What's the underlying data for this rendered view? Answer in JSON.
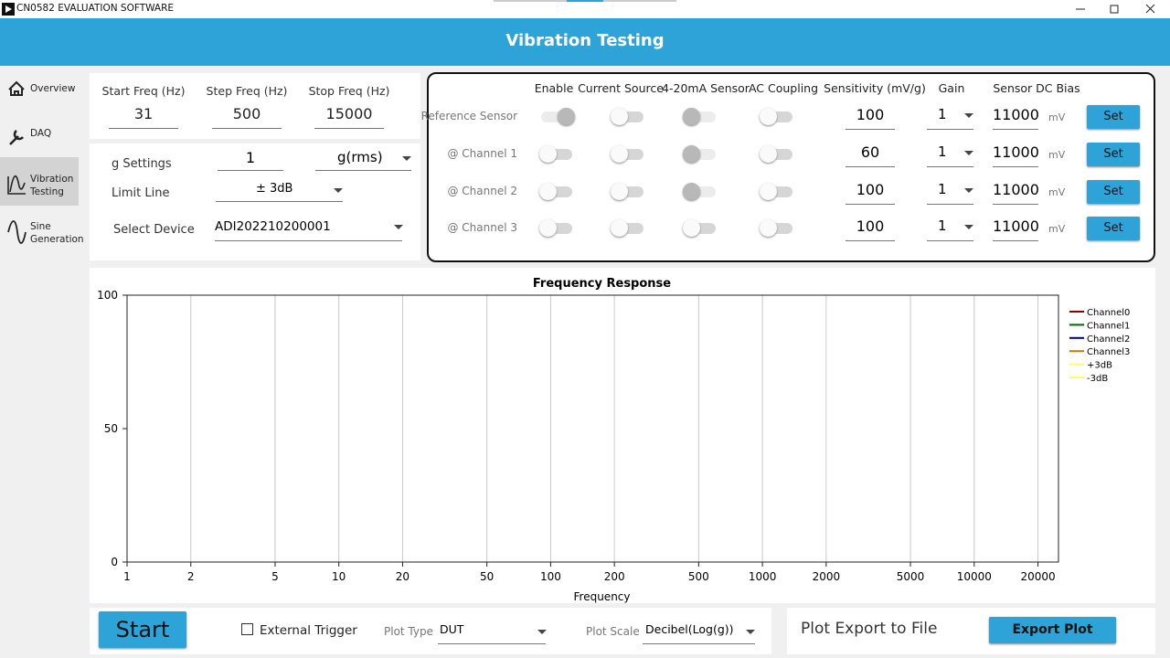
{
  "window": {
    "title": "CN0582 EVALUATION SOFTWARE"
  },
  "header": {
    "title": "Vibration Testing"
  },
  "nav": [
    {
      "label": "Overview",
      "selected": false
    },
    {
      "label": "DAQ",
      "selected": false
    },
    {
      "label": "Vibration Testing",
      "selected": true
    },
    {
      "label": "Sine Generation",
      "selected": false
    }
  ],
  "freq": [
    {
      "label": "Start Freq (Hz)",
      "value": "31"
    },
    {
      "label": "Step Freq (Hz)",
      "value": "500"
    },
    {
      "label": "Stop Freq (Hz)",
      "value": "15000"
    }
  ],
  "settings": {
    "g_label": "g Settings",
    "g_value": "1",
    "g_unit": "g(rms)",
    "limit_label": "Limit Line",
    "limit_value": "± 3dB",
    "device_label": "Select Device",
    "device_value": "ADI202210200001"
  },
  "sensors": {
    "columns": [
      "Enable",
      "Current Source",
      "4-20mA Sensor",
      "AC Coupling",
      "Sensitivity (mV/g)",
      "Gain",
      "Sensor DC Bias"
    ],
    "rows": [
      {
        "name": "Reference Sensor",
        "toggles": [
          "disabled-on",
          "off",
          "disabled",
          "off"
        ],
        "sensitivity": "100",
        "gain": "1",
        "bias": "11000",
        "unit": "mV",
        "button": "Set"
      },
      {
        "name": "@ Channel 1",
        "toggles": [
          "off",
          "off",
          "disabled",
          "off"
        ],
        "sensitivity": "60",
        "gain": "1",
        "bias": "11000",
        "unit": "mV",
        "button": "Set"
      },
      {
        "name": "@ Channel 2",
        "toggles": [
          "off",
          "off",
          "disabled",
          "off"
        ],
        "sensitivity": "100",
        "gain": "1",
        "bias": "11000",
        "unit": "mV",
        "button": "Set"
      },
      {
        "name": "@ Channel 3",
        "toggles": [
          "off",
          "off",
          "off",
          "off"
        ],
        "sensitivity": "100",
        "gain": "1",
        "bias": "11000",
        "unit": "mV",
        "button": "Set"
      }
    ]
  },
  "chart_data": {
    "type": "line",
    "title": "Frequency Response",
    "x_label": "Frequency",
    "log_x": true,
    "grid": true,
    "legend": "right",
    "xlim": [
      1,
      25000
    ],
    "xticks": [
      1,
      2,
      5,
      10,
      20,
      50,
      100,
      200,
      500,
      1000,
      2000,
      5000,
      10000,
      20000
    ],
    "ylim": [
      0,
      100
    ],
    "yticks": [
      0,
      50,
      100
    ],
    "series": [
      {
        "name": "Channel0",
        "color": "#8b0000"
      },
      {
        "name": "Channel1",
        "color": "#006400"
      },
      {
        "name": "Channel2",
        "color": "#00008b"
      },
      {
        "name": "Channel3",
        "color": "#cc7a00"
      },
      {
        "name": "+3dB",
        "color": "#ffff66"
      },
      {
        "name": "-3dB",
        "color": "#ffff66"
      }
    ]
  },
  "controls": {
    "start": "Start",
    "external_trigger": "External Trigger",
    "external_trigger_checked": false,
    "plot_type_label": "Plot Type",
    "plot_type": "DUT",
    "plot_scale_label": "Plot Scale",
    "plot_scale": "Decibel(Log(g))",
    "export_label": "Plot Export to File",
    "export_button": "Export Plot"
  }
}
